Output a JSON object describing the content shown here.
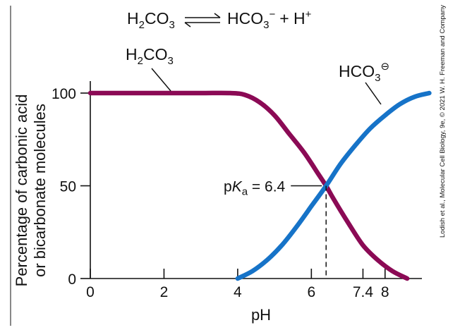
{
  "equation": {
    "left_main": "H",
    "left_sub1": "2",
    "left_mid": "CO",
    "left_sub2": "3",
    "arrow": "⇌",
    "right_main": "HCO",
    "right_sub": "3",
    "right_sup": "−",
    "plus": "+ H",
    "plus_sup": "+"
  },
  "chart_data": {
    "type": "line",
    "xlabel": "pH",
    "ylabel_line1": "Percentage of carbonic acid",
    "ylabel_line2": "or bicarbonate molecules",
    "xlim": [
      0,
      9
    ],
    "ylim": [
      0,
      100
    ],
    "x_ticks": [
      0,
      2,
      4,
      6,
      7.4,
      8
    ],
    "x_tick_labels": [
      "0",
      "2",
      "4",
      "6",
      "7.4",
      "8"
    ],
    "y_ticks": [
      0,
      50,
      100
    ],
    "y_tick_labels": [
      "0",
      "50",
      "100"
    ],
    "pka_value": 6.4,
    "pka_label": {
      "p": "p",
      "K": "K",
      "sub": "a",
      "rest": " = 6.4"
    },
    "series": [
      {
        "name": "H2CO3",
        "label_main": "H",
        "label_sub1": "2",
        "label_mid": "CO",
        "label_sub2": "3",
        "color": "#8b0a55",
        "x": [
          0,
          1,
          2,
          3,
          3.8,
          4.2,
          4.6,
          5.0,
          5.4,
          5.8,
          6.2,
          6.4,
          6.6,
          7.0,
          7.4,
          7.8,
          8.2,
          8.6
        ],
        "y": [
          100,
          100,
          100,
          100,
          100,
          99,
          95,
          88,
          78,
          68,
          56,
          50,
          43,
          30,
          18,
          10,
          4,
          0
        ]
      },
      {
        "name": "HCO3-",
        "label_main": "HCO",
        "label_sub": "3",
        "label_sup": "⊖",
        "color": "#1673c8",
        "x": [
          4,
          4.4,
          4.8,
          5.2,
          5.6,
          6.0,
          6.4,
          6.8,
          7.2,
          7.6,
          8.0,
          8.4,
          8.8,
          9.2
        ],
        "y": [
          0,
          4,
          10,
          18,
          28,
          39,
          50,
          62,
          72,
          81,
          88,
          94,
          98,
          100
        ]
      }
    ]
  },
  "credit": "Lodish et al., Molecular Cell Biology, 9e, © 2021 W. H. Freeman and Company"
}
